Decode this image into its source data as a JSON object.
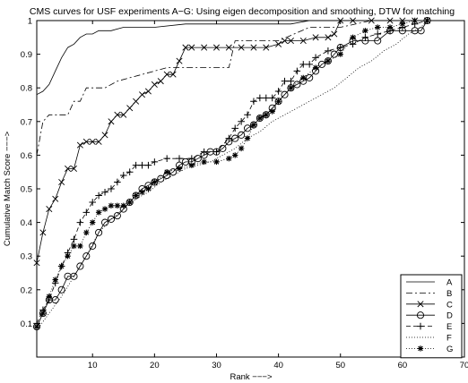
{
  "chart_data": {
    "type": "line",
    "title": "CMS curves for USF experiments A−G: Using eigen decomposition and smoothing, DTW for matching",
    "xlabel": "Rank −−−>",
    "ylabel": "Cumulative Match Score −−−>",
    "xlim": [
      1,
      70
    ],
    "ylim": [
      0,
      1
    ],
    "xticks": [
      10,
      20,
      30,
      40,
      50,
      60,
      70
    ],
    "yticks": [
      0.1,
      0.2,
      0.3,
      0.4,
      0.5,
      0.6,
      0.7,
      0.8,
      0.9,
      1
    ],
    "grid": false,
    "legend_position": "bottom-right",
    "series": [
      {
        "name": "A",
        "style": "solid",
        "marker": "none",
        "x": [
          1,
          2,
          3,
          4,
          5,
          6,
          7,
          8,
          9,
          10,
          11,
          12,
          13,
          15,
          17,
          20,
          25,
          30,
          35,
          40,
          42,
          45,
          50,
          55,
          60,
          64
        ],
        "y": [
          0.78,
          0.79,
          0.81,
          0.85,
          0.89,
          0.92,
          0.93,
          0.95,
          0.96,
          0.96,
          0.97,
          0.97,
          0.97,
          0.98,
          0.98,
          0.98,
          0.99,
          0.99,
          0.99,
          0.99,
          0.99,
          1.0,
          1.0,
          1.0,
          1.0,
          1.0
        ]
      },
      {
        "name": "B",
        "style": "dashdot",
        "marker": "none",
        "x": [
          1,
          2,
          3,
          4,
          5,
          6,
          7,
          8,
          9,
          10,
          11,
          12,
          14,
          16,
          18,
          20,
          22,
          24,
          25,
          26,
          28,
          30,
          32,
          33,
          35,
          38,
          40,
          45,
          50,
          55,
          60,
          64
        ],
        "y": [
          0.6,
          0.7,
          0.72,
          0.72,
          0.72,
          0.72,
          0.76,
          0.76,
          0.8,
          0.8,
          0.8,
          0.8,
          0.82,
          0.83,
          0.84,
          0.85,
          0.86,
          0.86,
          0.86,
          0.86,
          0.86,
          0.86,
          0.86,
          0.94,
          0.94,
          0.94,
          0.94,
          0.98,
          0.98,
          1.0,
          1.0,
          1.0
        ]
      },
      {
        "name": "C",
        "style": "solid",
        "marker": "x",
        "x": [
          1,
          2,
          3,
          4,
          5,
          6,
          7,
          8,
          9,
          10,
          11,
          12,
          13,
          14,
          15,
          16,
          17,
          18,
          19,
          20,
          21,
          22,
          23,
          24,
          25,
          26,
          28,
          30,
          32,
          34,
          36,
          38,
          40,
          41,
          42,
          44,
          46,
          48,
          49,
          50,
          52,
          55,
          58,
          60,
          62,
          64
        ],
        "y": [
          0.28,
          0.37,
          0.44,
          0.47,
          0.52,
          0.56,
          0.56,
          0.63,
          0.64,
          0.64,
          0.64,
          0.66,
          0.7,
          0.72,
          0.72,
          0.74,
          0.76,
          0.78,
          0.79,
          0.81,
          0.82,
          0.84,
          0.84,
          0.88,
          0.92,
          0.92,
          0.92,
          0.92,
          0.92,
          0.92,
          0.92,
          0.92,
          0.93,
          0.94,
          0.94,
          0.94,
          0.95,
          0.95,
          0.96,
          1.0,
          1.0,
          1.0,
          1.0,
          1.0,
          1.0,
          1.0
        ]
      },
      {
        "name": "D",
        "style": "solid",
        "marker": "o",
        "x": [
          1,
          2,
          3,
          4,
          5,
          6,
          7,
          8,
          9,
          10,
          11,
          12,
          13,
          14,
          15,
          16,
          17,
          18,
          19,
          20,
          21,
          22,
          23,
          24,
          25,
          26,
          27,
          28,
          29,
          30,
          31,
          32,
          33,
          34,
          35,
          36,
          37,
          38,
          39,
          40,
          41,
          42,
          43,
          44,
          45,
          46,
          47,
          48,
          49,
          50,
          52,
          54,
          56,
          58,
          60,
          62,
          63,
          64
        ],
        "y": [
          0.09,
          0.13,
          0.17,
          0.17,
          0.2,
          0.24,
          0.24,
          0.27,
          0.3,
          0.33,
          0.37,
          0.4,
          0.41,
          0.42,
          0.44,
          0.46,
          0.48,
          0.5,
          0.51,
          0.52,
          0.53,
          0.54,
          0.55,
          0.57,
          0.58,
          0.58,
          0.59,
          0.6,
          0.61,
          0.61,
          0.62,
          0.64,
          0.65,
          0.66,
          0.68,
          0.69,
          0.71,
          0.72,
          0.74,
          0.76,
          0.78,
          0.8,
          0.81,
          0.82,
          0.83,
          0.85,
          0.87,
          0.88,
          0.9,
          0.92,
          0.94,
          0.94,
          0.94,
          0.97,
          0.97,
          0.97,
          0.97,
          1.0
        ]
      },
      {
        "name": "E",
        "style": "dashed",
        "marker": "+",
        "x": [
          1,
          2,
          3,
          4,
          5,
          6,
          7,
          8,
          9,
          10,
          11,
          12,
          13,
          14,
          15,
          16,
          17,
          18,
          19,
          20,
          22,
          24,
          26,
          28,
          30,
          32,
          33,
          34,
          35,
          36,
          37,
          38,
          39,
          40,
          41,
          42,
          43,
          44,
          45,
          46,
          48,
          50,
          52,
          54,
          56,
          58,
          60,
          62,
          64
        ],
        "y": [
          0.1,
          0.14,
          0.17,
          0.22,
          0.27,
          0.31,
          0.35,
          0.4,
          0.43,
          0.46,
          0.48,
          0.49,
          0.5,
          0.52,
          0.54,
          0.55,
          0.57,
          0.57,
          0.57,
          0.58,
          0.59,
          0.59,
          0.59,
          0.61,
          0.61,
          0.65,
          0.68,
          0.7,
          0.72,
          0.76,
          0.77,
          0.77,
          0.77,
          0.79,
          0.82,
          0.82,
          0.85,
          0.87,
          0.87,
          0.89,
          0.91,
          0.92,
          0.93,
          0.95,
          0.96,
          0.97,
          0.98,
          0.99,
          1.0
        ]
      },
      {
        "name": "F",
        "style": "dotted",
        "marker": "none",
        "x": [
          1,
          3,
          5,
          7,
          9,
          11,
          13,
          15,
          17,
          19,
          21,
          23,
          25,
          27,
          29,
          31,
          33,
          35,
          37,
          39,
          41,
          43,
          45,
          47,
          49,
          51,
          53,
          55,
          57,
          59,
          61,
          63,
          64
        ],
        "y": [
          0.08,
          0.13,
          0.18,
          0.24,
          0.3,
          0.37,
          0.41,
          0.44,
          0.47,
          0.49,
          0.52,
          0.54,
          0.56,
          0.57,
          0.58,
          0.6,
          0.62,
          0.65,
          0.67,
          0.7,
          0.72,
          0.74,
          0.76,
          0.78,
          0.8,
          0.83,
          0.86,
          0.88,
          0.91,
          0.93,
          0.96,
          0.98,
          1.0
        ]
      },
      {
        "name": "G",
        "style": "dotted",
        "marker": "*",
        "x": [
          1,
          2,
          3,
          4,
          5,
          6,
          7,
          8,
          9,
          10,
          11,
          12,
          13,
          14,
          15,
          16,
          17,
          18,
          19,
          20,
          22,
          24,
          26,
          28,
          30,
          32,
          33,
          34,
          35,
          36,
          37,
          38,
          39,
          40,
          42,
          44,
          46,
          48,
          50,
          52,
          54,
          56,
          58,
          60,
          62,
          64
        ],
        "y": [
          0.09,
          0.13,
          0.18,
          0.23,
          0.27,
          0.3,
          0.33,
          0.33,
          0.37,
          0.4,
          0.43,
          0.44,
          0.45,
          0.45,
          0.45,
          0.46,
          0.48,
          0.49,
          0.5,
          0.52,
          0.55,
          0.56,
          0.57,
          0.58,
          0.58,
          0.59,
          0.6,
          0.62,
          0.65,
          0.69,
          0.71,
          0.72,
          0.73,
          0.76,
          0.8,
          0.83,
          0.86,
          0.88,
          0.9,
          0.95,
          0.97,
          0.98,
          0.98,
          0.99,
          1.0,
          1.0
        ]
      }
    ]
  }
}
